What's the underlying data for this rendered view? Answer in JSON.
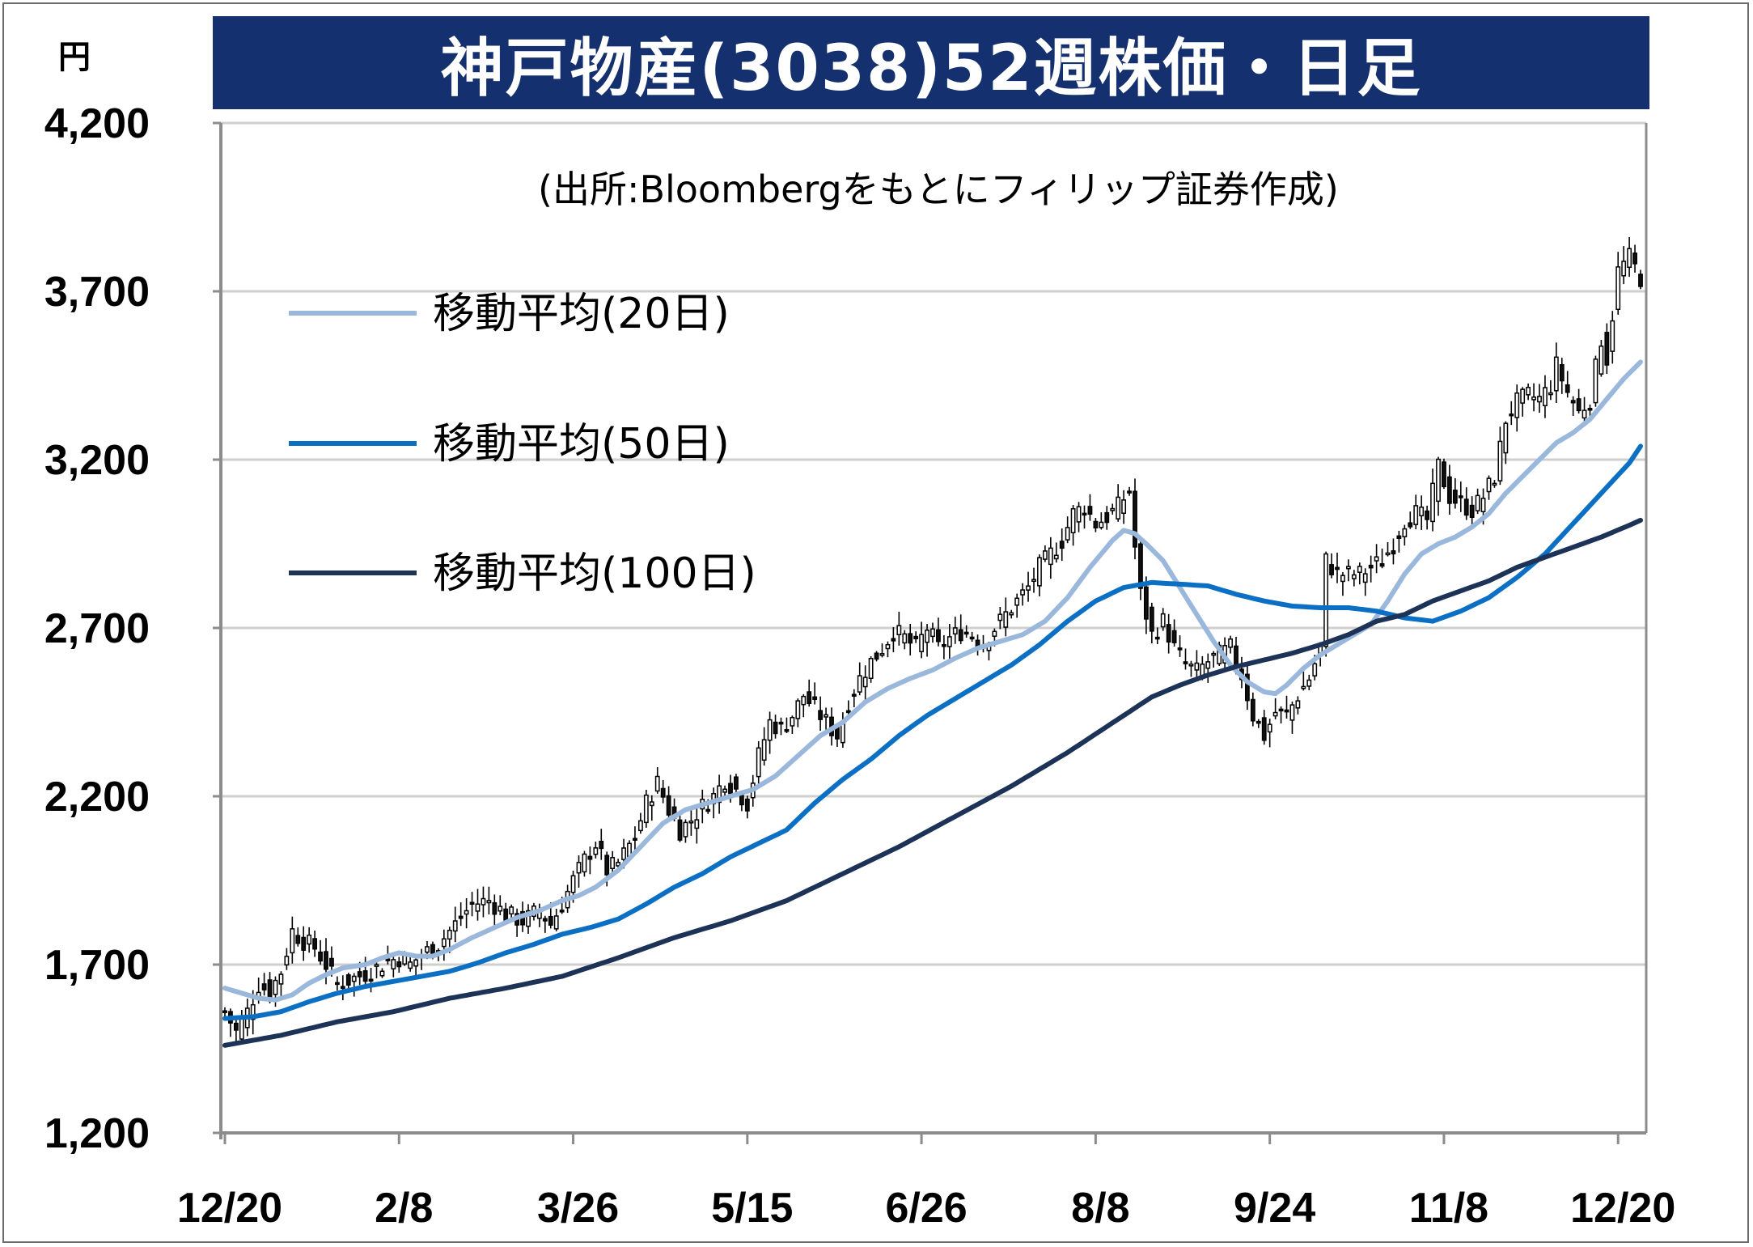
{
  "chart_data": {
    "type": "candlestick",
    "title": "神戸物産(3038)52週株価・日足",
    "source": "(出所:Bloombergをもとにフィリップ証券作成)",
    "unit": "円",
    "ylabel": "円",
    "ylim": [
      1200,
      4200
    ],
    "yticks": [
      {
        "value": 1200,
        "label": "1,200"
      },
      {
        "value": 1700,
        "label": "1,700"
      },
      {
        "value": 2200,
        "label": "2,200"
      },
      {
        "value": 2700,
        "label": "2,700"
      },
      {
        "value": 3200,
        "label": "3,200"
      },
      {
        "value": 3700,
        "label": "3,700"
      },
      {
        "value": 4200,
        "label": "4,200"
      }
    ],
    "xticks": [
      {
        "index": 0,
        "label": "12/20"
      },
      {
        "index": 31,
        "label": "2/8"
      },
      {
        "index": 62,
        "label": "3/26"
      },
      {
        "index": 93,
        "label": "5/15"
      },
      {
        "index": 124,
        "label": "6/26"
      },
      {
        "index": 155,
        "label": "8/8"
      },
      {
        "index": 186,
        "label": "9/24"
      },
      {
        "index": 217,
        "label": "11/8"
      },
      {
        "index": 248,
        "label": "12/20"
      }
    ],
    "grid": true,
    "legend_position": "top-left",
    "price_anchors": [
      [
        0,
        1560
      ],
      [
        2,
        1500
      ],
      [
        4,
        1560
      ],
      [
        6,
        1640
      ],
      [
        8,
        1620
      ],
      [
        10,
        1680
      ],
      [
        12,
        1800
      ],
      [
        14,
        1770
      ],
      [
        16,
        1750
      ],
      [
        18,
        1700
      ],
      [
        20,
        1640
      ],
      [
        23,
        1660
      ],
      [
        26,
        1680
      ],
      [
        29,
        1710
      ],
      [
        31,
        1720
      ],
      [
        33,
        1700
      ],
      [
        35,
        1730
      ],
      [
        38,
        1760
      ],
      [
        41,
        1820
      ],
      [
        44,
        1880
      ],
      [
        47,
        1890
      ],
      [
        50,
        1850
      ],
      [
        53,
        1830
      ],
      [
        56,
        1860
      ],
      [
        58,
        1820
      ],
      [
        60,
        1880
      ],
      [
        62,
        1950
      ],
      [
        64,
        2010
      ],
      [
        66,
        2060
      ],
      [
        68,
        1980
      ],
      [
        70,
        2000
      ],
      [
        73,
        2080
      ],
      [
        75,
        2180
      ],
      [
        77,
        2240
      ],
      [
        79,
        2160
      ],
      [
        81,
        2100
      ],
      [
        83,
        2130
      ],
      [
        85,
        2170
      ],
      [
        87,
        2200
      ],
      [
        89,
        2250
      ],
      [
        91,
        2220
      ],
      [
        93,
        2180
      ],
      [
        95,
        2320
      ],
      [
        97,
        2420
      ],
      [
        99,
        2400
      ],
      [
        101,
        2440
      ],
      [
        103,
        2500
      ],
      [
        105,
        2460
      ],
      [
        107,
        2420
      ],
      [
        109,
        2380
      ],
      [
        111,
        2480
      ],
      [
        113,
        2550
      ],
      [
        115,
        2600
      ],
      [
        117,
        2640
      ],
      [
        119,
        2690
      ],
      [
        121,
        2670
      ],
      [
        123,
        2640
      ],
      [
        125,
        2700
      ],
      [
        127,
        2640
      ],
      [
        129,
        2670
      ],
      [
        131,
        2690
      ],
      [
        133,
        2680
      ],
      [
        135,
        2650
      ],
      [
        137,
        2700
      ],
      [
        139,
        2740
      ],
      [
        141,
        2780
      ],
      [
        143,
        2820
      ],
      [
        145,
        2880
      ],
      [
        147,
        2920
      ],
      [
        149,
        2960
      ],
      [
        151,
        3040
      ],
      [
        153,
        3060
      ],
      [
        155,
        3010
      ],
      [
        157,
        3030
      ],
      [
        159,
        3060
      ],
      [
        161,
        3110
      ],
      [
        162,
        2940
      ],
      [
        163,
        2800
      ],
      [
        165,
        2680
      ],
      [
        167,
        2720
      ],
      [
        169,
        2640
      ],
      [
        171,
        2590
      ],
      [
        173,
        2570
      ],
      [
        175,
        2600
      ],
      [
        177,
        2620
      ],
      [
        179,
        2640
      ],
      [
        181,
        2560
      ],
      [
        183,
        2440
      ],
      [
        185,
        2380
      ],
      [
        187,
        2450
      ],
      [
        189,
        2440
      ],
      [
        191,
        2500
      ],
      [
        193,
        2550
      ],
      [
        195,
        2640
      ],
      [
        196,
        2900
      ],
      [
        198,
        2860
      ],
      [
        200,
        2860
      ],
      [
        202,
        2860
      ],
      [
        204,
        2880
      ],
      [
        206,
        2900
      ],
      [
        208,
        2950
      ],
      [
        210,
        3020
      ],
      [
        212,
        3040
      ],
      [
        214,
        3020
      ],
      [
        216,
        3180
      ],
      [
        218,
        3090
      ],
      [
        220,
        3070
      ],
      [
        222,
        3050
      ],
      [
        224,
        3090
      ],
      [
        226,
        3150
      ],
      [
        228,
        3320
      ],
      [
        230,
        3370
      ],
      [
        232,
        3390
      ],
      [
        234,
        3380
      ],
      [
        236,
        3420
      ],
      [
        237,
        3480
      ],
      [
        239,
        3400
      ],
      [
        241,
        3340
      ],
      [
        243,
        3380
      ],
      [
        245,
        3560
      ],
      [
        246,
        3500
      ],
      [
        248,
        3760
      ],
      [
        250,
        3800
      ],
      [
        252,
        3740
      ]
    ],
    "series": [
      {
        "name": "移動平均(20日)",
        "color": "#9ab7dc",
        "window": 20,
        "anchors": [
          [
            0,
            1630
          ],
          [
            3,
            1615
          ],
          [
            6,
            1600
          ],
          [
            9,
            1595
          ],
          [
            12,
            1610
          ],
          [
            15,
            1645
          ],
          [
            18,
            1670
          ],
          [
            21,
            1690
          ],
          [
            25,
            1700
          ],
          [
            28,
            1720
          ],
          [
            31,
            1735
          ],
          [
            34,
            1725
          ],
          [
            37,
            1725
          ],
          [
            40,
            1745
          ],
          [
            44,
            1780
          ],
          [
            48,
            1810
          ],
          [
            52,
            1840
          ],
          [
            56,
            1860
          ],
          [
            60,
            1890
          ],
          [
            63,
            1905
          ],
          [
            66,
            1930
          ],
          [
            70,
            1980
          ],
          [
            74,
            2050
          ],
          [
            78,
            2120
          ],
          [
            82,
            2160
          ],
          [
            86,
            2180
          ],
          [
            90,
            2200
          ],
          [
            94,
            2220
          ],
          [
            98,
            2260
          ],
          [
            102,
            2320
          ],
          [
            106,
            2380
          ],
          [
            110,
            2420
          ],
          [
            114,
            2480
          ],
          [
            118,
            2520
          ],
          [
            122,
            2550
          ],
          [
            126,
            2575
          ],
          [
            130,
            2610
          ],
          [
            134,
            2640
          ],
          [
            138,
            2660
          ],
          [
            142,
            2680
          ],
          [
            146,
            2720
          ],
          [
            150,
            2790
          ],
          [
            154,
            2880
          ],
          [
            158,
            2960
          ],
          [
            160,
            2990
          ],
          [
            162,
            2980
          ],
          [
            164,
            2950
          ],
          [
            167,
            2900
          ],
          [
            170,
            2820
          ],
          [
            173,
            2740
          ],
          [
            176,
            2660
          ],
          [
            179,
            2590
          ],
          [
            182,
            2540
          ],
          [
            185,
            2510
          ],
          [
            187,
            2505
          ],
          [
            189,
            2530
          ],
          [
            192,
            2580
          ],
          [
            195,
            2620
          ],
          [
            198,
            2650
          ],
          [
            201,
            2680
          ],
          [
            204,
            2710
          ],
          [
            207,
            2780
          ],
          [
            210,
            2860
          ],
          [
            213,
            2920
          ],
          [
            216,
            2950
          ],
          [
            219,
            2970
          ],
          [
            222,
            3000
          ],
          [
            225,
            3040
          ],
          [
            228,
            3100
          ],
          [
            231,
            3150
          ],
          [
            234,
            3200
          ],
          [
            237,
            3250
          ],
          [
            240,
            3280
          ],
          [
            243,
            3320
          ],
          [
            246,
            3380
          ],
          [
            249,
            3440
          ],
          [
            252,
            3490
          ]
        ]
      },
      {
        "name": "移動平均(50日)",
        "color": "#0b6fc4",
        "window": 50,
        "anchors": [
          [
            0,
            1540
          ],
          [
            5,
            1545
          ],
          [
            10,
            1560
          ],
          [
            15,
            1590
          ],
          [
            20,
            1615
          ],
          [
            25,
            1635
          ],
          [
            30,
            1650
          ],
          [
            35,
            1665
          ],
          [
            40,
            1680
          ],
          [
            45,
            1705
          ],
          [
            50,
            1735
          ],
          [
            55,
            1760
          ],
          [
            60,
            1790
          ],
          [
            65,
            1810
          ],
          [
            70,
            1835
          ],
          [
            75,
            1880
          ],
          [
            80,
            1930
          ],
          [
            85,
            1970
          ],
          [
            90,
            2020
          ],
          [
            95,
            2060
          ],
          [
            100,
            2100
          ],
          [
            105,
            2180
          ],
          [
            110,
            2250
          ],
          [
            115,
            2310
          ],
          [
            120,
            2380
          ],
          [
            125,
            2440
          ],
          [
            130,
            2490
          ],
          [
            135,
            2540
          ],
          [
            140,
            2590
          ],
          [
            145,
            2650
          ],
          [
            150,
            2720
          ],
          [
            155,
            2780
          ],
          [
            160,
            2820
          ],
          [
            165,
            2835
          ],
          [
            170,
            2830
          ],
          [
            175,
            2825
          ],
          [
            180,
            2800
          ],
          [
            185,
            2780
          ],
          [
            190,
            2765
          ],
          [
            195,
            2760
          ],
          [
            200,
            2760
          ],
          [
            205,
            2750
          ],
          [
            210,
            2730
          ],
          [
            215,
            2720
          ],
          [
            220,
            2750
          ],
          [
            225,
            2790
          ],
          [
            230,
            2850
          ],
          [
            235,
            2920
          ],
          [
            240,
            3010
          ],
          [
            245,
            3100
          ],
          [
            250,
            3190
          ],
          [
            252,
            3240
          ]
        ]
      },
      {
        "name": "移動平均(100日)",
        "color": "#1c3357",
        "window": 100,
        "anchors": [
          [
            0,
            1460
          ],
          [
            10,
            1490
          ],
          [
            20,
            1530
          ],
          [
            30,
            1560
          ],
          [
            40,
            1600
          ],
          [
            50,
            1630
          ],
          [
            60,
            1665
          ],
          [
            70,
            1720
          ],
          [
            80,
            1780
          ],
          [
            90,
            1830
          ],
          [
            100,
            1890
          ],
          [
            110,
            1970
          ],
          [
            120,
            2050
          ],
          [
            130,
            2140
          ],
          [
            140,
            2230
          ],
          [
            150,
            2330
          ],
          [
            160,
            2440
          ],
          [
            165,
            2495
          ],
          [
            170,
            2530
          ],
          [
            175,
            2560
          ],
          [
            180,
            2585
          ],
          [
            185,
            2605
          ],
          [
            190,
            2625
          ],
          [
            195,
            2650
          ],
          [
            200,
            2680
          ],
          [
            205,
            2720
          ],
          [
            210,
            2740
          ],
          [
            215,
            2780
          ],
          [
            220,
            2810
          ],
          [
            225,
            2840
          ],
          [
            230,
            2880
          ],
          [
            235,
            2910
          ],
          [
            240,
            2940
          ],
          [
            245,
            2970
          ],
          [
            250,
            3005
          ],
          [
            252,
            3020
          ]
        ]
      }
    ]
  }
}
